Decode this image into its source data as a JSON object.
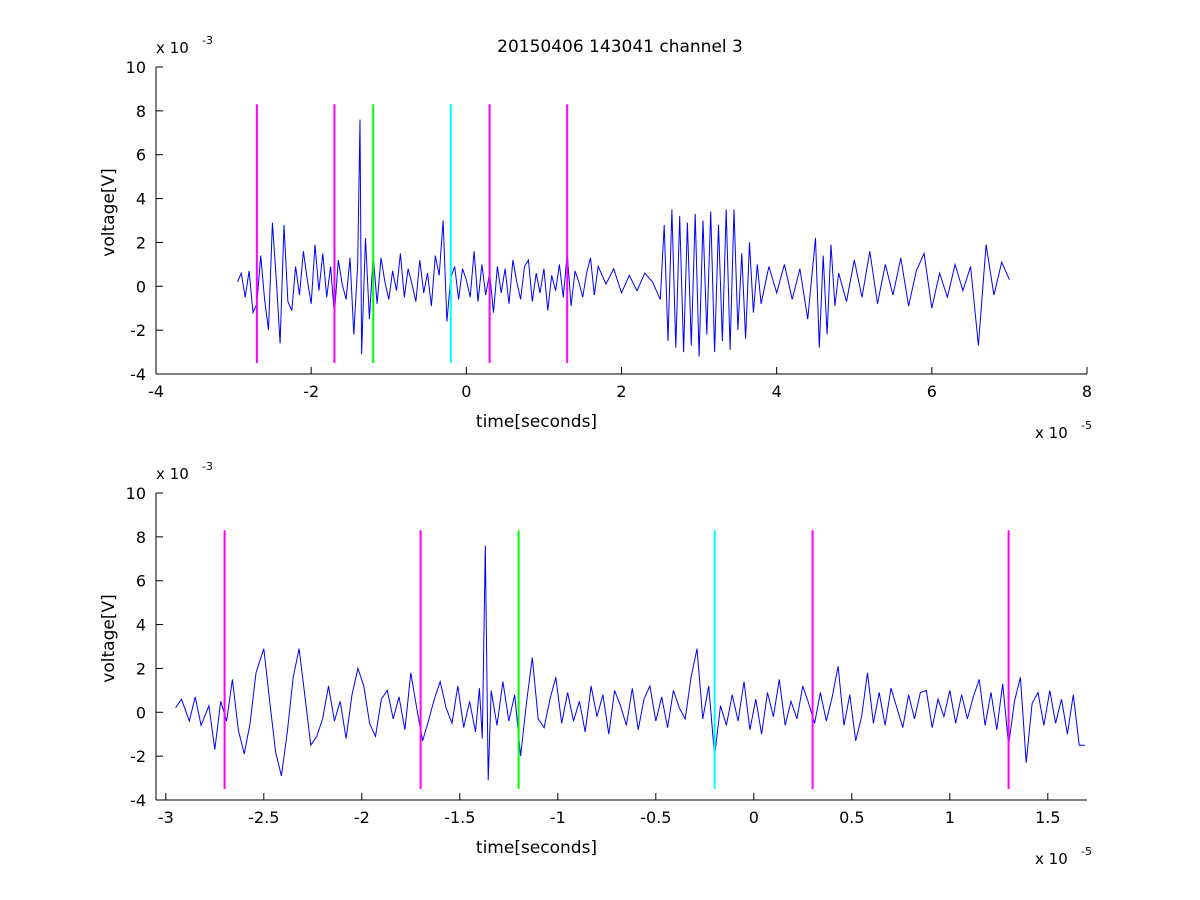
{
  "figure": {
    "title": "20150406 143041 channel 3"
  },
  "colors": {
    "signal": "#0000ff",
    "magenta": "#ff00ff",
    "green": "#00ff00",
    "cyan": "#00ffff",
    "axis": "#000000",
    "background": "#ffffff"
  },
  "chart_data": [
    {
      "type": "line",
      "title": "20150406 143041 channel 3",
      "xlabel": "time[seconds]",
      "ylabel": "voltage[V]",
      "x_exponent_label": "x 10",
      "x_exponent": "-5",
      "y_exponent_label": "x 10",
      "y_exponent": "-3",
      "xlim": [
        -4,
        8
      ],
      "ylim": [
        -4,
        10
      ],
      "xticks": [
        -4,
        -2,
        0,
        2,
        4,
        6,
        8
      ],
      "xtick_labels": [
        "-4",
        "-2",
        "0",
        "2",
        "4",
        "6",
        "8"
      ],
      "yticks": [
        -4,
        -2,
        0,
        2,
        4,
        6,
        8,
        10
      ],
      "ytick_labels": [
        "-4",
        "-2",
        "0",
        "2",
        "4",
        "6",
        "8",
        "10"
      ],
      "grid": false,
      "series": [
        {
          "color": "#0000ff",
          "x": [
            -2.95,
            -2.9,
            -2.85,
            -2.8,
            -2.75,
            -2.7,
            -2.65,
            -2.6,
            -2.55,
            -2.5,
            -2.45,
            -2.4,
            -2.35,
            -2.3,
            -2.25,
            -2.2,
            -2.15,
            -2.1,
            -2.05,
            -2.0,
            -1.95,
            -1.9,
            -1.85,
            -1.8,
            -1.75,
            -1.7,
            -1.65,
            -1.6,
            -1.55,
            -1.5,
            -1.45,
            -1.4,
            -1.37,
            -1.35,
            -1.3,
            -1.25,
            -1.2,
            -1.15,
            -1.1,
            -1.05,
            -1.0,
            -0.95,
            -0.9,
            -0.85,
            -0.8,
            -0.75,
            -0.7,
            -0.65,
            -0.6,
            -0.55,
            -0.5,
            -0.45,
            -0.4,
            -0.35,
            -0.3,
            -0.25,
            -0.2,
            -0.15,
            -0.1,
            -0.05,
            0.0,
            0.05,
            0.1,
            0.15,
            0.2,
            0.25,
            0.3,
            0.35,
            0.4,
            0.45,
            0.5,
            0.55,
            0.6,
            0.65,
            0.7,
            0.75,
            0.8,
            0.85,
            0.9,
            0.95,
            1.0,
            1.05,
            1.1,
            1.15,
            1.2,
            1.25,
            1.3,
            1.35,
            1.4,
            1.45,
            1.5,
            1.55,
            1.6,
            1.65,
            1.7,
            1.8,
            1.9,
            2.0,
            2.1,
            2.2,
            2.3,
            2.4,
            2.5,
            2.55,
            2.6,
            2.65,
            2.7,
            2.75,
            2.8,
            2.85,
            2.9,
            2.95,
            3.0,
            3.05,
            3.1,
            3.15,
            3.2,
            3.25,
            3.3,
            3.35,
            3.4,
            3.45,
            3.5,
            3.55,
            3.6,
            3.65,
            3.7,
            3.75,
            3.8,
            3.9,
            4.0,
            4.1,
            4.2,
            4.3,
            4.4,
            4.5,
            4.55,
            4.6,
            4.65,
            4.7,
            4.75,
            4.8,
            4.9,
            5.0,
            5.1,
            5.2,
            5.3,
            5.4,
            5.5,
            5.6,
            5.7,
            5.8,
            5.9,
            6.0,
            6.1,
            6.2,
            6.3,
            6.4,
            6.5,
            6.6,
            6.7,
            6.8,
            6.9,
            7.0
          ],
          "y": [
            0.2,
            0.6,
            -0.5,
            0.7,
            -1.2,
            -0.8,
            1.4,
            -0.6,
            -2.0,
            2.9,
            0.3,
            -2.6,
            2.8,
            -0.7,
            -1.1,
            0.9,
            -0.4,
            1.6,
            0.3,
            -0.8,
            1.9,
            -0.2,
            1.5,
            -0.5,
            0.9,
            -1.3,
            1.2,
            0.1,
            -0.6,
            1.3,
            -2.2,
            1.0,
            7.6,
            -3.1,
            2.2,
            -1.5,
            1.4,
            -0.8,
            1.3,
            0.2,
            -0.6,
            0.7,
            -0.2,
            1.5,
            -0.5,
            0.8,
            0.1,
            -0.7,
            1.2,
            -0.3,
            0.6,
            -0.9,
            1.4,
            0.5,
            3.0,
            -1.6,
            0.4,
            0.9,
            -0.6,
            0.8,
            0.3,
            -0.5,
            1.6,
            -0.7,
            1.0,
            -0.4,
            0.6,
            -1.2,
            0.9,
            -0.3,
            0.8,
            -0.8,
            1.2,
            0.2,
            -0.6,
            0.9,
            1.2,
            -0.7,
            0.6,
            -0.3,
            0.8,
            -1.1,
            0.5,
            -0.2,
            1.0,
            -0.5,
            1.5,
            -0.9,
            0.7,
            0.2,
            -0.5,
            0.6,
            1.3,
            -0.4,
            0.9,
            0.1,
            0.8,
            -0.3,
            0.5,
            -0.2,
            0.6,
            0.2,
            -0.6,
            2.8,
            -2.5,
            3.5,
            -2.8,
            3.2,
            -3.0,
            2.9,
            -2.7,
            3.3,
            -3.2,
            3.0,
            -2.2,
            3.4,
            -3.0,
            2.8,
            -2.5,
            3.5,
            -2.9,
            3.5,
            -2.0,
            1.5,
            -2.4,
            2.0,
            -1.2,
            1.0,
            -0.8,
            0.9,
            -0.3,
            1.0,
            -0.6,
            0.8,
            -1.5,
            2.2,
            -2.8,
            1.4,
            -2.2,
            1.9,
            -0.9,
            0.6,
            -0.7,
            1.2,
            -0.5,
            1.6,
            -0.8,
            1.0,
            -0.4,
            1.3,
            -0.9,
            0.7,
            1.5,
            -1.0,
            0.6,
            -0.5,
            1.0,
            -0.2,
            0.9,
            -2.7,
            1.9,
            -0.4,
            1.1,
            0.3
          ]
        }
      ],
      "vlines": [
        {
          "x": -2.7,
          "color": "#ff00ff",
          "y_range": [
            -3.5,
            8.3
          ]
        },
        {
          "x": -1.7,
          "color": "#ff00ff",
          "y_range": [
            -3.5,
            8.3
          ]
        },
        {
          "x": -1.2,
          "color": "#00ff00",
          "y_range": [
            -3.5,
            8.3
          ]
        },
        {
          "x": -0.2,
          "color": "#00ffff",
          "y_range": [
            -3.5,
            8.3
          ]
        },
        {
          "x": 0.3,
          "color": "#ff00ff",
          "y_range": [
            -3.5,
            8.3
          ]
        },
        {
          "x": 1.3,
          "color": "#ff00ff",
          "y_range": [
            -3.5,
            8.3
          ]
        }
      ]
    },
    {
      "type": "line",
      "title": "",
      "xlabel": "time[seconds]",
      "ylabel": "voltage[V]",
      "x_exponent_label": "x 10",
      "x_exponent": "-5",
      "y_exponent_label": "x 10",
      "y_exponent": "-3",
      "xlim": [
        -3.05,
        1.7
      ],
      "ylim": [
        -4,
        10
      ],
      "xticks": [
        -3,
        -2.5,
        -2,
        -1.5,
        -1,
        -0.5,
        0,
        0.5,
        1,
        1.5
      ],
      "xtick_labels": [
        "-3",
        "-2.5",
        "-2",
        "-1.5",
        "-1",
        "-0.5",
        "0",
        "0.5",
        "1",
        "1.5"
      ],
      "yticks": [
        -4,
        -2,
        0,
        2,
        4,
        6,
        8,
        10
      ],
      "ytick_labels": [
        "-4",
        "-2",
        "0",
        "2",
        "4",
        "6",
        "8",
        "10"
      ],
      "grid": false,
      "series": [
        {
          "color": "#0000ff",
          "x": [
            -2.95,
            -2.92,
            -2.88,
            -2.85,
            -2.82,
            -2.78,
            -2.75,
            -2.72,
            -2.69,
            -2.66,
            -2.63,
            -2.6,
            -2.57,
            -2.54,
            -2.5,
            -2.47,
            -2.44,
            -2.41,
            -2.38,
            -2.35,
            -2.32,
            -2.29,
            -2.26,
            -2.23,
            -2.2,
            -2.17,
            -2.14,
            -2.11,
            -2.08,
            -2.05,
            -2.02,
            -1.99,
            -1.96,
            -1.93,
            -1.9,
            -1.87,
            -1.84,
            -1.81,
            -1.78,
            -1.75,
            -1.72,
            -1.69,
            -1.66,
            -1.63,
            -1.6,
            -1.57,
            -1.54,
            -1.51,
            -1.48,
            -1.45,
            -1.42,
            -1.4,
            -1.385,
            -1.37,
            -1.355,
            -1.34,
            -1.31,
            -1.28,
            -1.25,
            -1.22,
            -1.19,
            -1.16,
            -1.13,
            -1.1,
            -1.07,
            -1.04,
            -1.01,
            -0.98,
            -0.95,
            -0.92,
            -0.89,
            -0.86,
            -0.83,
            -0.8,
            -0.77,
            -0.74,
            -0.71,
            -0.68,
            -0.65,
            -0.62,
            -0.59,
            -0.56,
            -0.53,
            -0.5,
            -0.47,
            -0.44,
            -0.41,
            -0.38,
            -0.35,
            -0.32,
            -0.29,
            -0.26,
            -0.23,
            -0.2,
            -0.17,
            -0.14,
            -0.11,
            -0.08,
            -0.05,
            -0.02,
            0.01,
            0.04,
            0.07,
            0.1,
            0.13,
            0.16,
            0.19,
            0.22,
            0.25,
            0.28,
            0.31,
            0.34,
            0.37,
            0.4,
            0.43,
            0.46,
            0.49,
            0.52,
            0.55,
            0.58,
            0.61,
            0.64,
            0.67,
            0.7,
            0.73,
            0.76,
            0.79,
            0.82,
            0.85,
            0.88,
            0.91,
            0.94,
            0.97,
            1.0,
            1.03,
            1.06,
            1.09,
            1.12,
            1.15,
            1.18,
            1.21,
            1.24,
            1.27,
            1.3,
            1.33,
            1.36,
            1.39,
            1.42,
            1.45,
            1.48,
            1.51,
            1.54,
            1.57,
            1.6,
            1.63,
            1.66,
            1.69
          ],
          "y": [
            0.2,
            0.6,
            -0.4,
            0.7,
            -0.6,
            0.3,
            -1.7,
            0.5,
            -0.4,
            1.5,
            -0.8,
            -1.9,
            -0.5,
            1.8,
            2.9,
            0.5,
            -1.8,
            -2.9,
            -0.9,
            1.6,
            2.9,
            0.7,
            -1.5,
            -1.1,
            -0.3,
            1.2,
            -0.4,
            0.5,
            -1.2,
            0.8,
            2.0,
            1.2,
            -0.5,
            -1.1,
            0.6,
            1.0,
            -0.3,
            0.7,
            -0.8,
            1.8,
            0.2,
            -1.3,
            -0.4,
            0.6,
            1.4,
            0.2,
            -0.5,
            1.2,
            -0.7,
            0.5,
            -0.9,
            1.1,
            -1.2,
            7.6,
            -3.1,
            1.0,
            -0.6,
            1.4,
            -0.4,
            0.8,
            -2.0,
            0.4,
            2.5,
            -0.3,
            -0.7,
            0.6,
            1.6,
            -0.5,
            0.9,
            -0.4,
            0.5,
            -0.9,
            1.2,
            -0.2,
            0.8,
            -1.0,
            1.0,
            0.3,
            -0.6,
            1.1,
            -0.8,
            0.6,
            1.2,
            -0.4,
            0.7,
            -0.7,
            1.0,
            0.2,
            -0.3,
            1.6,
            2.9,
            -0.3,
            1.2,
            -2.0,
            0.3,
            -0.6,
            0.8,
            -0.4,
            1.4,
            -0.8,
            0.6,
            -1.0,
            0.9,
            -0.2,
            1.5,
            -0.6,
            0.5,
            -0.3,
            1.2,
            0.4,
            -0.5,
            0.9,
            -0.4,
            0.7,
            2.1,
            -0.6,
            0.8,
            -1.3,
            -0.2,
            1.8,
            -0.5,
            0.9,
            -0.6,
            1.1,
            0.2,
            -0.7,
            0.8,
            -0.3,
            0.9,
            1.0,
            -0.7,
            0.6,
            -0.2,
            1.0,
            -0.5,
            0.8,
            -0.3,
            0.7,
            1.5,
            -0.6,
            0.9,
            -0.8,
            1.3,
            -1.5,
            0.5,
            1.6,
            -2.3,
            0.4,
            0.9,
            -0.6,
            1.0,
            -0.5,
            0.6,
            -1.0,
            0.8,
            -1.5,
            -1.5
          ]
        }
      ],
      "vlines": [
        {
          "x": -2.7,
          "color": "#ff00ff",
          "y_range": [
            -3.5,
            8.3
          ]
        },
        {
          "x": -1.7,
          "color": "#ff00ff",
          "y_range": [
            -3.5,
            8.3
          ]
        },
        {
          "x": -1.2,
          "color": "#00ff00",
          "y_range": [
            -3.5,
            8.3
          ]
        },
        {
          "x": -0.2,
          "color": "#00ffff",
          "y_range": [
            -3.5,
            8.3
          ]
        },
        {
          "x": 0.3,
          "color": "#ff00ff",
          "y_range": [
            -3.5,
            8.3
          ]
        },
        {
          "x": 1.3,
          "color": "#ff00ff",
          "y_range": [
            -3.5,
            8.3
          ]
        }
      ]
    }
  ]
}
